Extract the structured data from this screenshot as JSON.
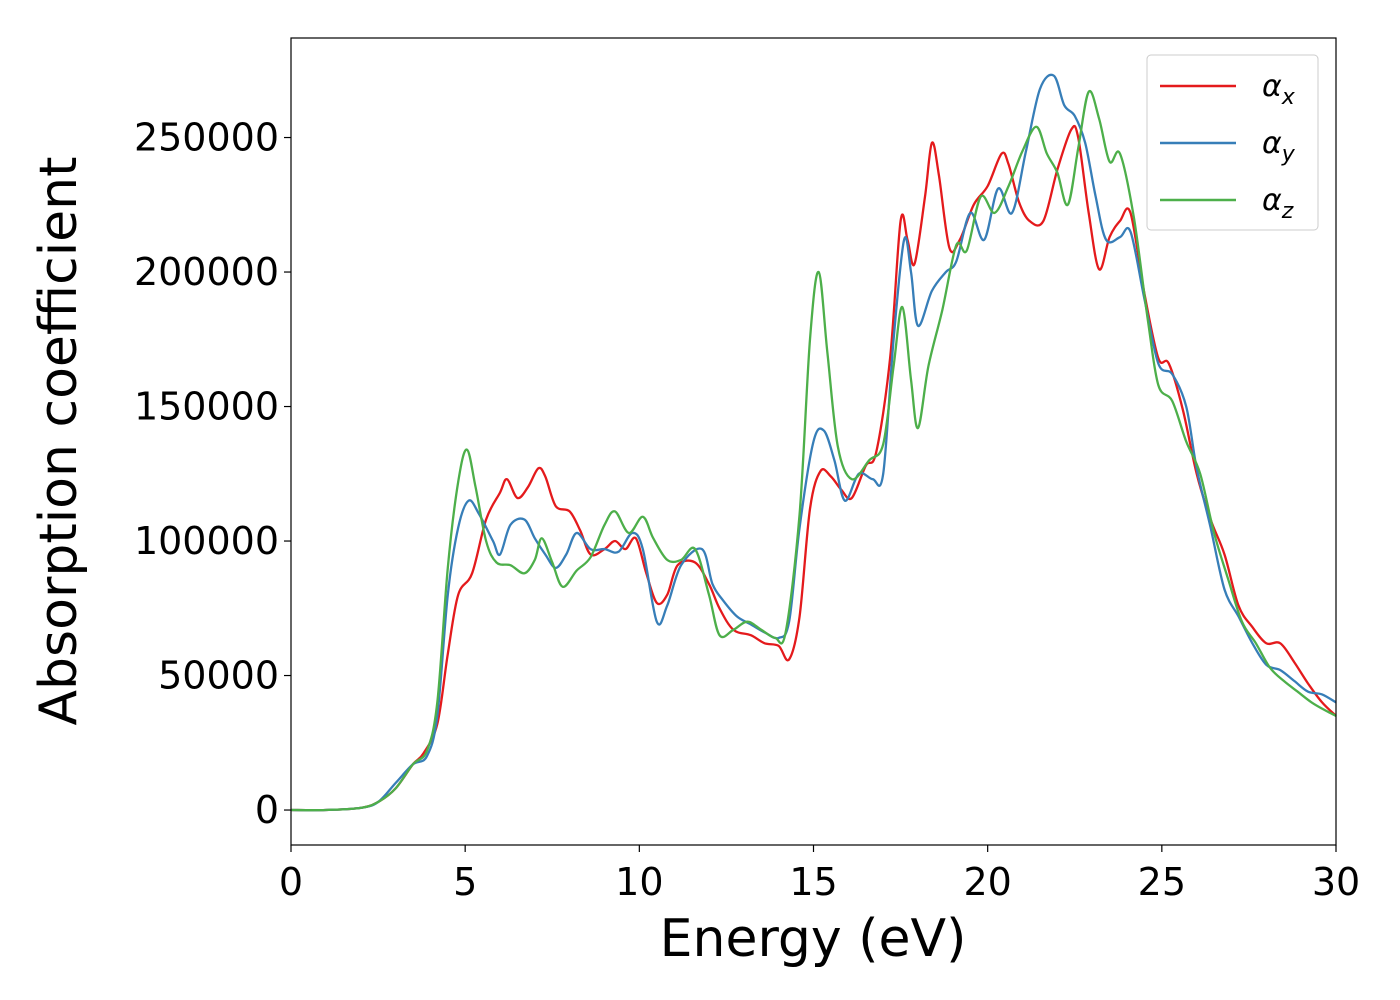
{
  "chart_data": {
    "type": "line",
    "xlabel": "Energy (eV)",
    "ylabel": "Absorption coefficient",
    "xlim": [
      0,
      30
    ],
    "ylim": [
      -13000,
      287000
    ],
    "xticks": [
      0,
      5,
      10,
      15,
      20,
      25,
      30
    ],
    "xtick_labels": [
      "0",
      "5",
      "10",
      "15",
      "20",
      "25",
      "30"
    ],
    "yticks": [
      0,
      50000,
      100000,
      150000,
      200000,
      250000
    ],
    "ytick_labels": [
      "0",
      "50000",
      "100000",
      "150000",
      "200000",
      "250000"
    ],
    "grid": false,
    "legend_position": "top-right",
    "series": [
      {
        "name": "αx",
        "name_base": "α",
        "name_sub": "x",
        "color": "#e41a1c",
        "points": [
          [
            0,
            0
          ],
          [
            1,
            0
          ],
          [
            2,
            800
          ],
          [
            2.5,
            3000
          ],
          [
            3,
            8000
          ],
          [
            3.5,
            17000
          ],
          [
            3.8,
            21000
          ],
          [
            4.2,
            32000
          ],
          [
            4.5,
            58000
          ],
          [
            4.8,
            80000
          ],
          [
            5.2,
            88000
          ],
          [
            5.6,
            108000
          ],
          [
            6.0,
            118000
          ],
          [
            6.2,
            123000
          ],
          [
            6.5,
            116000
          ],
          [
            6.8,
            120000
          ],
          [
            7.1,
            127000
          ],
          [
            7.3,
            124000
          ],
          [
            7.6,
            113000
          ],
          [
            8.0,
            111000
          ],
          [
            8.3,
            104000
          ],
          [
            8.6,
            95000
          ],
          [
            9.0,
            97000
          ],
          [
            9.3,
            100000
          ],
          [
            9.6,
            97000
          ],
          [
            9.9,
            101000
          ],
          [
            10.2,
            88000
          ],
          [
            10.5,
            77000
          ],
          [
            10.8,
            80000
          ],
          [
            11.1,
            91000
          ],
          [
            11.6,
            92000
          ],
          [
            12.0,
            84000
          ],
          [
            12.3,
            75000
          ],
          [
            12.7,
            67000
          ],
          [
            13.2,
            65000
          ],
          [
            13.6,
            62000
          ],
          [
            14.0,
            61000
          ],
          [
            14.3,
            56000
          ],
          [
            14.6,
            72000
          ],
          [
            14.9,
            112000
          ],
          [
            15.2,
            126000
          ],
          [
            15.5,
            124000
          ],
          [
            15.8,
            119000
          ],
          [
            16.1,
            116000
          ],
          [
            16.5,
            128000
          ],
          [
            16.8,
            133000
          ],
          [
            17.2,
            168000
          ],
          [
            17.5,
            219000
          ],
          [
            17.7,
            212000
          ],
          [
            17.9,
            203000
          ],
          [
            18.2,
            228000
          ],
          [
            18.4,
            248000
          ],
          [
            18.6,
            236000
          ],
          [
            18.9,
            209000
          ],
          [
            19.2,
            212000
          ],
          [
            19.6,
            225000
          ],
          [
            20.0,
            232000
          ],
          [
            20.4,
            244000
          ],
          [
            20.6,
            240000
          ],
          [
            20.9,
            226000
          ],
          [
            21.2,
            219000
          ],
          [
            21.6,
            219000
          ],
          [
            22.0,
            238000
          ],
          [
            22.4,
            253000
          ],
          [
            22.6,
            250000
          ],
          [
            22.9,
            222000
          ],
          [
            23.2,
            201000
          ],
          [
            23.5,
            213000
          ],
          [
            23.8,
            219000
          ],
          [
            24.1,
            222000
          ],
          [
            24.5,
            192000
          ],
          [
            24.9,
            168000
          ],
          [
            25.2,
            166000
          ],
          [
            25.6,
            149000
          ],
          [
            26.0,
            125000
          ],
          [
            26.4,
            108000
          ],
          [
            26.8,
            95000
          ],
          [
            27.2,
            76000
          ],
          [
            27.6,
            68000
          ],
          [
            28.0,
            62000
          ],
          [
            28.4,
            62000
          ],
          [
            28.8,
            55000
          ],
          [
            29.2,
            47000
          ],
          [
            29.6,
            40000
          ],
          [
            30,
            35000
          ]
        ]
      },
      {
        "name": "αy",
        "name_base": "α",
        "name_sub": "y",
        "color": "#377eb8",
        "points": [
          [
            0,
            0
          ],
          [
            1,
            0
          ],
          [
            2,
            800
          ],
          [
            2.5,
            3000
          ],
          [
            3,
            10000
          ],
          [
            3.5,
            17000
          ],
          [
            3.9,
            20000
          ],
          [
            4.2,
            35000
          ],
          [
            4.5,
            80000
          ],
          [
            4.8,
            105000
          ],
          [
            5.1,
            115000
          ],
          [
            5.4,
            110000
          ],
          [
            5.8,
            100000
          ],
          [
            6.0,
            95000
          ],
          [
            6.3,
            106000
          ],
          [
            6.7,
            108000
          ],
          [
            7.0,
            101000
          ],
          [
            7.3,
            95000
          ],
          [
            7.6,
            90000
          ],
          [
            7.9,
            95000
          ],
          [
            8.2,
            103000
          ],
          [
            8.6,
            97000
          ],
          [
            9.0,
            97000
          ],
          [
            9.4,
            96000
          ],
          [
            9.8,
            103000
          ],
          [
            10.1,
            97000
          ],
          [
            10.5,
            70000
          ],
          [
            10.8,
            76000
          ],
          [
            11.2,
            91000
          ],
          [
            11.8,
            97000
          ],
          [
            12.1,
            84000
          ],
          [
            12.4,
            78000
          ],
          [
            12.8,
            72000
          ],
          [
            13.2,
            69000
          ],
          [
            13.6,
            66000
          ],
          [
            14.0,
            64000
          ],
          [
            14.3,
            70000
          ],
          [
            14.6,
            105000
          ],
          [
            15.0,
            137000
          ],
          [
            15.3,
            141000
          ],
          [
            15.6,
            130000
          ],
          [
            15.9,
            115000
          ],
          [
            16.3,
            125000
          ],
          [
            16.7,
            123000
          ],
          [
            17.0,
            125000
          ],
          [
            17.3,
            175000
          ],
          [
            17.6,
            212000
          ],
          [
            17.8,
            200000
          ],
          [
            18.0,
            180000
          ],
          [
            18.4,
            193000
          ],
          [
            18.8,
            200000
          ],
          [
            19.1,
            204000
          ],
          [
            19.5,
            222000
          ],
          [
            19.9,
            212000
          ],
          [
            20.3,
            231000
          ],
          [
            20.7,
            222000
          ],
          [
            21.1,
            245000
          ],
          [
            21.5,
            268000
          ],
          [
            21.9,
            273000
          ],
          [
            22.2,
            262000
          ],
          [
            22.5,
            258000
          ],
          [
            22.8,
            248000
          ],
          [
            23.1,
            228000
          ],
          [
            23.4,
            212000
          ],
          [
            23.8,
            213000
          ],
          [
            24.1,
            215000
          ],
          [
            24.5,
            190000
          ],
          [
            24.9,
            166000
          ],
          [
            25.3,
            162000
          ],
          [
            25.7,
            150000
          ],
          [
            26.0,
            127000
          ],
          [
            26.4,
            105000
          ],
          [
            26.8,
            82000
          ],
          [
            27.2,
            72000
          ],
          [
            27.6,
            62000
          ],
          [
            28.0,
            54000
          ],
          [
            28.4,
            52000
          ],
          [
            28.8,
            48000
          ],
          [
            29.2,
            44000
          ],
          [
            29.6,
            43000
          ],
          [
            30,
            40000
          ]
        ]
      },
      {
        "name": "αz",
        "name_base": "α",
        "name_sub": "z",
        "color": "#4daf4a",
        "points": [
          [
            0,
            0
          ],
          [
            1,
            0
          ],
          [
            2,
            800
          ],
          [
            2.5,
            3000
          ],
          [
            3,
            8000
          ],
          [
            3.5,
            17000
          ],
          [
            3.9,
            22000
          ],
          [
            4.2,
            40000
          ],
          [
            4.5,
            90000
          ],
          [
            4.8,
            122000
          ],
          [
            5.05,
            134000
          ],
          [
            5.3,
            120000
          ],
          [
            5.6,
            100000
          ],
          [
            5.9,
            92000
          ],
          [
            6.3,
            91000
          ],
          [
            6.7,
            88000
          ],
          [
            7.0,
            93000
          ],
          [
            7.2,
            101000
          ],
          [
            7.5,
            92000
          ],
          [
            7.8,
            83000
          ],
          [
            8.2,
            89000
          ],
          [
            8.6,
            94000
          ],
          [
            9.0,
            106000
          ],
          [
            9.3,
            111000
          ],
          [
            9.7,
            103000
          ],
          [
            10.1,
            109000
          ],
          [
            10.4,
            101000
          ],
          [
            10.8,
            93000
          ],
          [
            11.2,
            93000
          ],
          [
            11.6,
            97000
          ],
          [
            12.0,
            80000
          ],
          [
            12.3,
            65000
          ],
          [
            12.7,
            67000
          ],
          [
            13.1,
            70000
          ],
          [
            13.5,
            67000
          ],
          [
            13.9,
            64000
          ],
          [
            14.2,
            66000
          ],
          [
            14.6,
            110000
          ],
          [
            14.9,
            175000
          ],
          [
            15.15,
            200000
          ],
          [
            15.4,
            170000
          ],
          [
            15.7,
            135000
          ],
          [
            16.1,
            123000
          ],
          [
            16.6,
            130000
          ],
          [
            17.0,
            136000
          ],
          [
            17.3,
            165000
          ],
          [
            17.55,
            187000
          ],
          [
            17.8,
            160000
          ],
          [
            18.0,
            142000
          ],
          [
            18.3,
            165000
          ],
          [
            18.7,
            186000
          ],
          [
            19.1,
            210000
          ],
          [
            19.4,
            208000
          ],
          [
            19.8,
            228000
          ],
          [
            20.2,
            222000
          ],
          [
            20.6,
            232000
          ],
          [
            21.0,
            245000
          ],
          [
            21.4,
            254000
          ],
          [
            21.7,
            244000
          ],
          [
            22.0,
            237000
          ],
          [
            22.3,
            225000
          ],
          [
            22.6,
            246000
          ],
          [
            22.9,
            267000
          ],
          [
            23.2,
            257000
          ],
          [
            23.5,
            241000
          ],
          [
            23.8,
            244000
          ],
          [
            24.2,
            220000
          ],
          [
            24.6,
            182000
          ],
          [
            24.9,
            158000
          ],
          [
            25.3,
            152000
          ],
          [
            25.7,
            137000
          ],
          [
            26.1,
            125000
          ],
          [
            26.5,
            103000
          ],
          [
            26.9,
            86000
          ],
          [
            27.3,
            70000
          ],
          [
            27.7,
            62000
          ],
          [
            28.1,
            53000
          ],
          [
            28.5,
            48000
          ],
          [
            28.9,
            44000
          ],
          [
            29.3,
            40000
          ],
          [
            29.7,
            37000
          ],
          [
            30,
            35000
          ]
        ]
      }
    ]
  }
}
